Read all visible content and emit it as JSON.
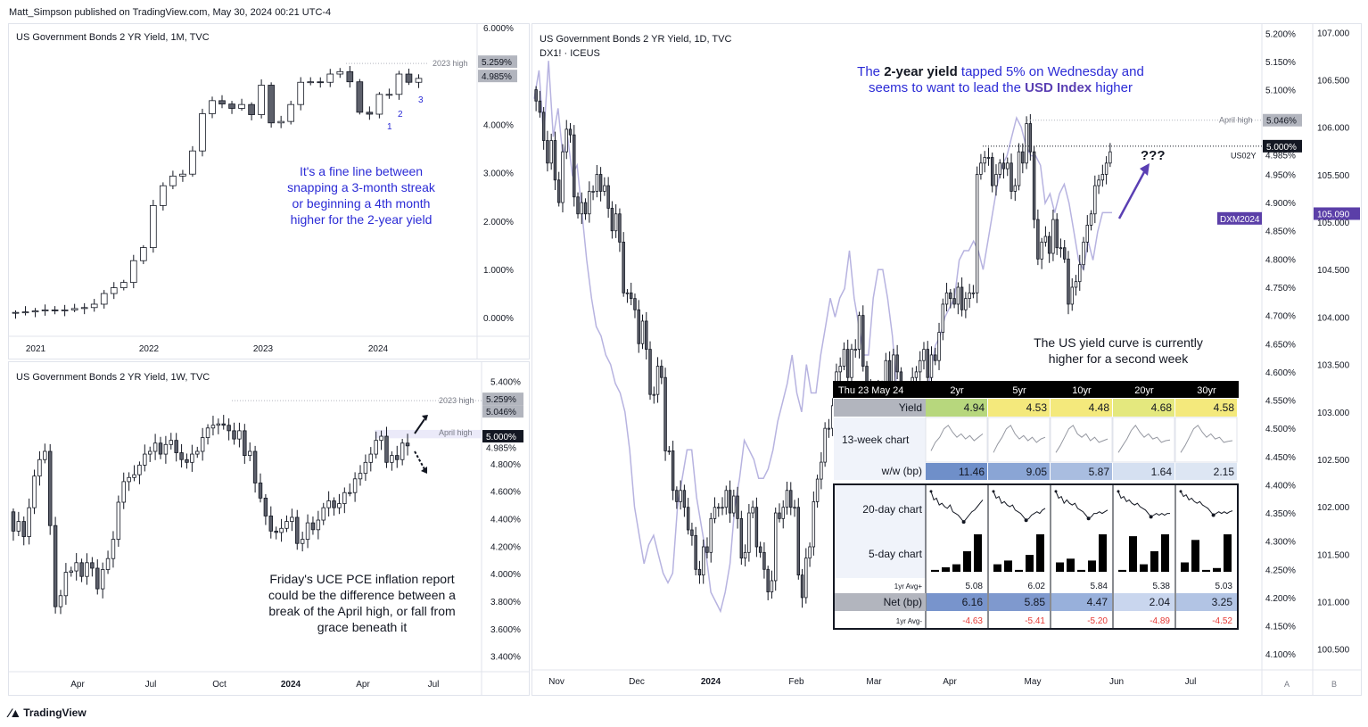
{
  "header": {
    "publish_line": "Matt_Simpson published on TradingView.com, May 30, 2024 00:21 UTC-4"
  },
  "footer": {
    "brand": "TradingView"
  },
  "colors": {
    "up": "#ffffff",
    "down": "#5d606b",
    "wick": "#131722",
    "annotation_blue": "#2b2bd6",
    "arrow_purple": "#5a3fb3",
    "dxm_line": "#b7b3e0",
    "badge_purple": "#5b3fa8"
  },
  "chart_data": [
    {
      "id": "monthly",
      "type": "candlestick",
      "title": "US Government Bonds 2 YR Yield, 1M, TVC",
      "x_ticks": [
        "2021",
        "2022",
        "2023",
        "2024"
      ],
      "y_ticks": [
        "6.000%",
        "5.000%",
        "4.000%",
        "3.000%",
        "2.000%",
        "1.000%",
        "0.000%"
      ],
      "ylim": [
        -0.2,
        6.0
      ],
      "price_labels": [
        "5.259%",
        "4.985%"
      ],
      "reference_lines": [
        {
          "label": "2023 high",
          "value": 5.259
        }
      ],
      "candle_labels": [
        "1",
        "2",
        "3"
      ],
      "annotation": "It's a fine line between snapping a 3-month streak or beginning a 4th month higher for the 2-year yield",
      "closes": [
        0.11,
        0.12,
        0.14,
        0.16,
        0.15,
        0.16,
        0.19,
        0.21,
        0.28,
        0.5,
        0.62,
        0.73,
        1.18,
        1.45,
        2.32,
        2.73,
        2.93,
        2.97,
        3.45,
        4.22,
        4.49,
        4.42,
        4.33,
        4.41,
        4.2,
        4.81,
        4.03,
        4.06,
        4.41,
        4.87,
        4.88,
        4.87,
        5.04,
        5.09,
        4.88,
        4.25,
        4.21,
        4.62,
        4.62,
        5.04,
        4.87,
        4.95
      ],
      "open_start": 0.1
    },
    {
      "id": "weekly",
      "type": "candlestick",
      "title": "US Government Bonds 2 YR Yield, 1W, TVC",
      "x_ticks": [
        "Apr",
        "Jul",
        "Oct",
        "2024",
        "Apr",
        "Jul"
      ],
      "y_ticks": [
        "5.400%",
        "5.200%",
        "5.000%",
        "4.800%",
        "4.600%",
        "4.400%",
        "4.200%",
        "4.000%",
        "3.800%",
        "3.600%",
        "3.400%"
      ],
      "ylim": [
        3.3,
        5.5
      ],
      "price_labels": [
        "5.259%",
        "5.046%",
        "5.000%",
        "4.985%"
      ],
      "reference_lines": [
        {
          "label": "2023 high",
          "value": 5.259
        },
        {
          "label": "April high",
          "value": 5.046
        }
      ],
      "annotation": "Friday's UCE PCE inflation report could be the difference between a break of the April high, or fall from grace beneath it",
      "closes": [
        4.31,
        4.38,
        4.27,
        4.48,
        4.71,
        4.83,
        4.89,
        4.35,
        3.76,
        3.84,
        4.01,
        4.02,
        4.08,
        3.98,
        4.08,
        4.04,
        3.89,
        4.03,
        4.11,
        4.25,
        4.52,
        4.67,
        4.7,
        4.72,
        4.79,
        4.87,
        4.89,
        4.95,
        4.87,
        4.94,
        4.97,
        4.88,
        4.83,
        4.81,
        4.87,
        4.89,
        4.99,
        5.06,
        5.08,
        5.09,
        5.08,
        5.04,
        4.98,
        5.04,
        4.86,
        4.89,
        4.66,
        4.55,
        4.42,
        4.31,
        4.3,
        4.33,
        4.38,
        4.41,
        4.22,
        4.25,
        4.37,
        4.32,
        4.39,
        4.48,
        4.53,
        4.48,
        4.51,
        4.59,
        4.59,
        4.69,
        4.73,
        4.81,
        4.87,
        4.97,
        5.0,
        4.81,
        4.86,
        4.83,
        4.95,
        4.93
      ],
      "open_start": 4.45
    },
    {
      "id": "daily",
      "type": "candlestick",
      "title": "US Government Bonds 2 YR Yield, 1D, TVC",
      "subtitle": "DX1! · ICEUS",
      "x_ticks": [
        "Nov",
        "Dec",
        "2024",
        "Feb",
        "Mar",
        "Apr",
        "May",
        "Jun",
        "Jul"
      ],
      "y_ticks_left": [
        "5.200%",
        "5.150%",
        "5.100%",
        "5.050%",
        "5.000%",
        "4.950%",
        "4.900%",
        "4.850%",
        "4.800%",
        "4.750%",
        "4.700%",
        "4.650%",
        "4.600%",
        "4.550%",
        "4.500%",
        "4.450%",
        "4.400%",
        "4.350%",
        "4.300%",
        "4.250%",
        "4.200%",
        "4.150%",
        "4.100%"
      ],
      "y_ticks_right": [
        "107.000",
        "106.500",
        "106.000",
        "105.500",
        "105.000",
        "104.500",
        "104.000",
        "103.500",
        "103.000",
        "102.500",
        "102.000",
        "101.500",
        "101.000",
        "100.500"
      ],
      "ylim_left": [
        4.075,
        5.21
      ],
      "ylim_right": [
        100.3,
        107.05
      ],
      "price_labels": [
        "5.046%",
        "5.000%",
        "4.985%"
      ],
      "reference_lines": [
        {
          "label": "April high",
          "value": 5.046
        },
        {
          "label": "",
          "value": 5.0
        }
      ],
      "symbol_label": "US02Y",
      "dxm_label": "DXM2024",
      "dxm_value": "105.090",
      "annotation_title": [
        "The ",
        "2-year yield",
        " tapped 5% on Wednesday and",
        "seems to want to lead the ",
        "USD Index",
        " higher"
      ],
      "question_marks": "???",
      "curve_note": "The US yield curve is currently higher for a second week",
      "closes": [
        5.08,
        5.06,
        5.01,
        4.97,
        5.01,
        4.94,
        4.9,
        4.99,
        5.03,
        5.02,
        4.91,
        4.88,
        4.9,
        4.88,
        4.92,
        4.92,
        4.95,
        4.92,
        4.93,
        4.89,
        4.85,
        4.88,
        4.83,
        4.74,
        4.74,
        4.73,
        4.71,
        4.65,
        4.69,
        4.64,
        4.56,
        4.56,
        4.61,
        4.59,
        4.46,
        4.46,
        4.39,
        4.37,
        4.39,
        4.36,
        4.32,
        4.31,
        4.25,
        4.24,
        4.29,
        4.28,
        4.34,
        4.36,
        4.36,
        4.36,
        4.39,
        4.35,
        4.38,
        4.34,
        4.27,
        4.28,
        4.35,
        4.36,
        4.29,
        4.28,
        4.25,
        4.21,
        4.23,
        4.35,
        4.34,
        4.36,
        4.39,
        4.36,
        4.36,
        4.24,
        4.2,
        4.27,
        4.29,
        4.37,
        4.41,
        4.44,
        4.5,
        4.5,
        4.54,
        4.6,
        4.61,
        4.64,
        4.59,
        4.64,
        4.64,
        4.7,
        4.61,
        4.55,
        4.57,
        4.55,
        4.57,
        4.55,
        4.62,
        4.58,
        4.63,
        4.6,
        4.55,
        4.53,
        4.52,
        4.59,
        4.6,
        4.62,
        4.64,
        4.59,
        4.63,
        4.62,
        4.67,
        4.72,
        4.74,
        4.73,
        4.72,
        4.75,
        4.71,
        4.73,
        4.74,
        4.74,
        4.95,
        4.97,
        4.98,
        4.98,
        4.93,
        4.95,
        4.97,
        4.96,
        4.97,
        4.92,
        4.93,
        4.99,
        4.97,
        5.04,
        4.99,
        4.87,
        4.8,
        4.83,
        4.84,
        4.81,
        4.87,
        4.82,
        4.82,
        4.8,
        4.72,
        4.75,
        4.76,
        4.79,
        4.83,
        4.86,
        4.88,
        4.93,
        4.94,
        4.95,
        4.97,
        4.99
      ],
      "dxm_values": [
        106.3,
        106.6,
        105.9,
        106.7,
        105.9,
        106.2,
        105.7,
        105.9,
        105.5,
        105.6,
        105.1,
        104.6,
        104.2,
        103.9,
        103.8,
        103.6,
        103.5,
        103.3,
        103.2,
        103.0,
        102.6,
        102.0,
        101.7,
        101.4,
        101.6,
        101.7,
        101.5,
        101.3,
        101.2,
        101.3,
        102.0,
        102.3,
        102.6,
        102.6,
        102.1,
        101.8,
        101.5,
        101.1,
        101.0,
        100.9,
        101.1,
        101.4,
        102.0,
        102.3,
        102.7,
        102.6,
        102.5,
        102.3,
        102.3,
        102.4,
        102.6,
        102.9,
        103.1,
        103.3,
        103.6,
        103.2,
        103.0,
        103.5,
        103.2,
        103.2,
        103.6,
        103.9,
        104.2,
        104.0,
        104.2,
        104.3,
        104.7,
        104.2,
        103.9,
        103.6,
        103.6,
        104.2,
        104.5,
        104.5,
        104.2,
        103.8,
        103.2,
        102.9,
        103.1,
        102.8,
        102.9,
        102.9,
        103.1,
        103.4,
        103.7,
        103.8,
        104.0,
        104.1,
        104.2,
        104.6,
        104.7,
        104.7,
        104.8,
        104.7,
        104.5,
        104.8,
        105.1,
        105.4,
        105.6,
        105.7,
        105.9,
        106.1,
        106.0,
        105.8,
        105.7,
        105.7,
        105.6,
        105.2,
        105.3,
        105.1,
        105.3,
        105.4,
        105.2,
        104.9,
        104.6,
        104.5,
        104.8,
        104.6,
        104.9,
        105.1,
        105.1,
        105.1
      ]
    }
  ],
  "yield_table": {
    "date_label": "Thu 23 May 24",
    "headers": [
      "2yr",
      "5yr",
      "10yr",
      "20yr",
      "30yr"
    ],
    "yield_label": "Yield",
    "yields": [
      "4.94",
      "4.53",
      "4.48",
      "4.68",
      "4.58"
    ],
    "yield_colors": [
      "#b7d77d",
      "#f4e97c",
      "#f4e97c",
      "#e4e87e",
      "#f4e97c"
    ],
    "week_chart_label": "13-week chart",
    "ww_label": "w/w (bp)",
    "ww": [
      "11.46",
      "9.05",
      "5.87",
      "1.64",
      "2.15"
    ],
    "ww_colors": [
      "#6f8fc9",
      "#8aa5d5",
      "#a9bde0",
      "#d5e0f1",
      "#dde6f3"
    ],
    "twenty_day_label": "20-day chart",
    "five_day_label": "5-day chart",
    "avg_plus_label": "1yr Avg+",
    "avg_plus": [
      "5.08",
      "6.02",
      "5.84",
      "5.38",
      "5.03"
    ],
    "net_label": "Net (bp)",
    "net": [
      "6.16",
      "5.85",
      "4.47",
      "2.04",
      "3.25"
    ],
    "net_colors": [
      "#7894cc",
      "#7f99ce",
      "#98b0db",
      "#c9d6ee",
      "#b2c4e4"
    ],
    "avg_minus_label": "1yr Avg-",
    "avg_minus": [
      "-4.63",
      "-5.41",
      "-5.20",
      "-4.89",
      "-4.52"
    ],
    "week_sparks": [
      [
        0.2,
        0.45,
        0.6,
        0.85,
        0.95,
        0.75,
        0.6,
        0.7,
        0.55,
        0.65,
        0.5,
        0.6,
        0.7
      ],
      [
        0.15,
        0.4,
        0.6,
        0.85,
        0.95,
        0.7,
        0.55,
        0.65,
        0.5,
        0.6,
        0.45,
        0.55,
        0.6
      ],
      [
        0.15,
        0.35,
        0.6,
        0.85,
        0.95,
        0.7,
        0.6,
        0.7,
        0.5,
        0.6,
        0.45,
        0.5,
        0.55
      ],
      [
        0.15,
        0.35,
        0.55,
        0.8,
        0.95,
        0.75,
        0.6,
        0.7,
        0.55,
        0.6,
        0.45,
        0.5,
        0.52
      ],
      [
        0.15,
        0.35,
        0.6,
        0.85,
        0.95,
        0.75,
        0.6,
        0.7,
        0.55,
        0.6,
        0.45,
        0.48,
        0.5
      ]
    ],
    "day_sparks": [
      [
        0.95,
        0.7,
        0.75,
        0.55,
        0.6,
        0.5,
        0.45,
        0.55,
        0.35,
        0.3,
        0.25,
        0.15,
        0.05,
        0.15,
        0.25,
        0.35,
        0.4,
        0.5,
        0.6,
        0.7
      ],
      [
        0.95,
        0.75,
        0.8,
        0.6,
        0.65,
        0.55,
        0.5,
        0.55,
        0.4,
        0.35,
        0.3,
        0.2,
        0.1,
        0.15,
        0.25,
        0.3,
        0.35,
        0.3,
        0.4,
        0.45
      ],
      [
        0.95,
        0.75,
        0.8,
        0.6,
        0.7,
        0.6,
        0.55,
        0.6,
        0.45,
        0.4,
        0.35,
        0.25,
        0.15,
        0.2,
        0.3,
        0.3,
        0.35,
        0.3,
        0.35,
        0.4
      ],
      [
        0.95,
        0.75,
        0.8,
        0.65,
        0.7,
        0.6,
        0.55,
        0.6,
        0.5,
        0.45,
        0.4,
        0.3,
        0.2,
        0.25,
        0.3,
        0.25,
        0.3,
        0.25,
        0.3,
        0.3
      ],
      [
        0.95,
        0.8,
        0.85,
        0.7,
        0.75,
        0.65,
        0.6,
        0.65,
        0.55,
        0.5,
        0.45,
        0.35,
        0.25,
        0.3,
        0.35,
        0.3,
        0.35,
        0.3,
        0.35,
        0.38
      ]
    ],
    "five_day_bars": [
      [
        0.05,
        0.12,
        0.2,
        0.55,
        1.0
      ],
      [
        0.2,
        0.3,
        0.05,
        0.45,
        1.0
      ],
      [
        0.25,
        0.35,
        0.05,
        0.3,
        1.0
      ],
      [
        0.05,
        0.95,
        0.2,
        0.55,
        1.0
      ],
      [
        0.25,
        0.85,
        0.05,
        0.1,
        1.0
      ]
    ],
    "day_marker_index": [
      12,
      12,
      12,
      12,
      12
    ]
  }
}
